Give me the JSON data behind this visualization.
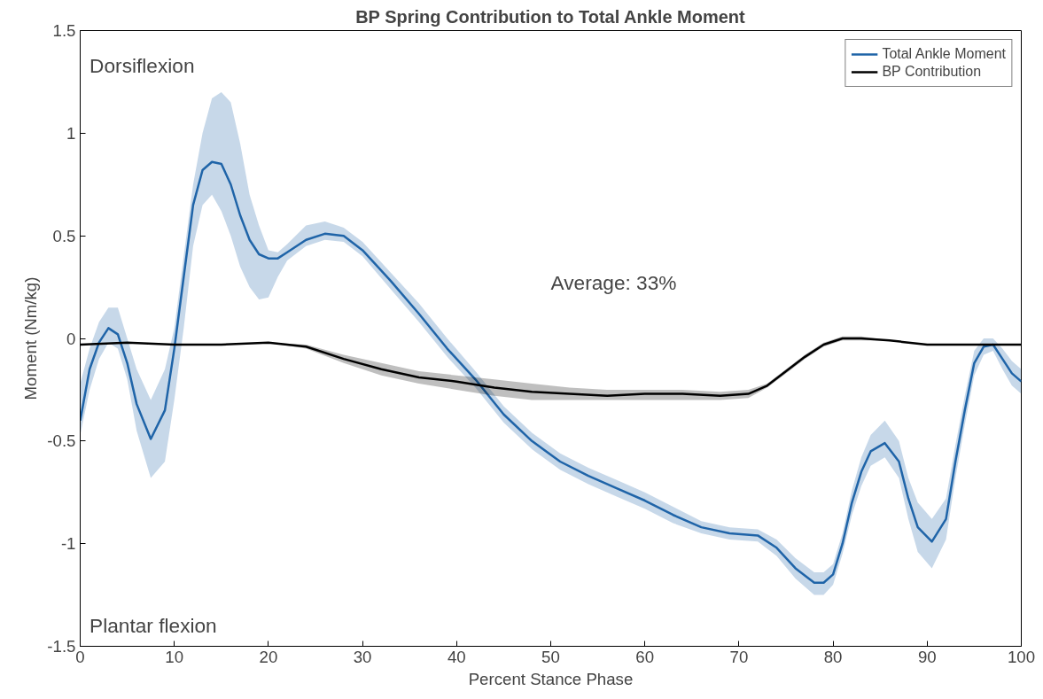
{
  "chart_data": {
    "type": "line",
    "title": "BP Spring Contribution to Total Ankle Moment",
    "xlabel": "Percent Stance Phase",
    "ylabel": "Moment (Nm/kg)",
    "xlim": [
      0,
      100
    ],
    "ylim": [
      -1.5,
      1.5
    ],
    "xticks": [
      0,
      10,
      20,
      30,
      40,
      50,
      60,
      70,
      80,
      90,
      100
    ],
    "yticks": [
      -1.5,
      -1,
      -0.5,
      0,
      0.5,
      1,
      1.5
    ],
    "grid": false,
    "legend": "top right",
    "marker": "none",
    "line_style": "solid",
    "annotations": [
      "Dorsiflexion",
      "Plantar flexion",
      "Average: 33%"
    ],
    "series": [
      {
        "name": "Total Ankle Moment",
        "color": "#1f64a8",
        "x": [
          0,
          1,
          2,
          3,
          4,
          5,
          6,
          7.5,
          9,
          10,
          11,
          12,
          13,
          14,
          15,
          16,
          17,
          18,
          19,
          20,
          21,
          22,
          24,
          26,
          28,
          30,
          33,
          36,
          39,
          42,
          45,
          48,
          51,
          54,
          57,
          60,
          63,
          66,
          69,
          72,
          74,
          76,
          78,
          79,
          80,
          81,
          82,
          83,
          84,
          85.5,
          87,
          88,
          89,
          90.5,
          92,
          93,
          94,
          95,
          96,
          97,
          98,
          99,
          100
        ],
        "values": [
          -0.4,
          -0.15,
          -0.02,
          0.05,
          0.02,
          -0.12,
          -0.32,
          -0.49,
          -0.35,
          -0.05,
          0.3,
          0.65,
          0.82,
          0.86,
          0.85,
          0.75,
          0.6,
          0.48,
          0.41,
          0.39,
          0.39,
          0.42,
          0.48,
          0.51,
          0.5,
          0.43,
          0.28,
          0.12,
          -0.05,
          -0.2,
          -0.37,
          -0.5,
          -0.6,
          -0.67,
          -0.73,
          -0.79,
          -0.86,
          -0.92,
          -0.95,
          -0.96,
          -1.02,
          -1.12,
          -1.19,
          -1.19,
          -1.15,
          -1.0,
          -0.8,
          -0.65,
          -0.55,
          -0.51,
          -0.6,
          -0.78,
          -0.92,
          -0.99,
          -0.88,
          -0.6,
          -0.35,
          -0.12,
          -0.04,
          -0.03,
          -0.1,
          -0.17,
          -0.21
        ],
        "lower": [
          -0.47,
          -0.25,
          -0.1,
          -0.02,
          -0.05,
          -0.2,
          -0.45,
          -0.68,
          -0.6,
          -0.3,
          0.05,
          0.45,
          0.65,
          0.7,
          0.62,
          0.5,
          0.35,
          0.25,
          0.19,
          0.2,
          0.3,
          0.38,
          0.45,
          0.48,
          0.47,
          0.4,
          0.24,
          0.08,
          -0.09,
          -0.24,
          -0.41,
          -0.54,
          -0.64,
          -0.71,
          -0.77,
          -0.83,
          -0.9,
          -0.95,
          -0.98,
          -0.99,
          -1.06,
          -1.17,
          -1.25,
          -1.25,
          -1.2,
          -1.05,
          -0.86,
          -0.72,
          -0.62,
          -0.58,
          -0.68,
          -0.88,
          -1.04,
          -1.12,
          -0.98,
          -0.68,
          -0.42,
          -0.18,
          -0.08,
          -0.06,
          -0.15,
          -0.23,
          -0.27
        ],
        "upper": [
          -0.22,
          -0.05,
          0.08,
          0.15,
          0.15,
          0.0,
          -0.15,
          -0.3,
          -0.15,
          0.05,
          0.4,
          0.75,
          1.0,
          1.17,
          1.2,
          1.15,
          0.95,
          0.7,
          0.55,
          0.43,
          0.42,
          0.46,
          0.55,
          0.57,
          0.54,
          0.47,
          0.32,
          0.17,
          0.0,
          -0.16,
          -0.33,
          -0.46,
          -0.56,
          -0.63,
          -0.69,
          -0.75,
          -0.82,
          -0.89,
          -0.92,
          -0.93,
          -0.98,
          -1.07,
          -1.14,
          -1.14,
          -1.1,
          -0.95,
          -0.74,
          -0.58,
          -0.47,
          -0.4,
          -0.5,
          -0.68,
          -0.8,
          -0.88,
          -0.78,
          -0.52,
          -0.28,
          -0.06,
          0.0,
          0.0,
          -0.05,
          -0.11,
          -0.15
        ]
      },
      {
        "name": "BP Contribution",
        "color": "#000000",
        "x": [
          0,
          5,
          10,
          15,
          20,
          24,
          28,
          32,
          36,
          40,
          44,
          48,
          52,
          56,
          60,
          64,
          68,
          71,
          73,
          75,
          77,
          79,
          81,
          83,
          86,
          90,
          100
        ],
        "values": [
          -0.03,
          -0.02,
          -0.03,
          -0.03,
          -0.02,
          -0.04,
          -0.1,
          -0.15,
          -0.19,
          -0.21,
          -0.24,
          -0.26,
          -0.27,
          -0.28,
          -0.27,
          -0.27,
          -0.28,
          -0.27,
          -0.23,
          -0.16,
          -0.09,
          -0.03,
          0.0,
          0.0,
          -0.01,
          -0.03,
          -0.03
        ],
        "lower": [
          -0.03,
          -0.02,
          -0.03,
          -0.03,
          -0.02,
          -0.05,
          -0.12,
          -0.18,
          -0.22,
          -0.25,
          -0.28,
          -0.3,
          -0.3,
          -0.3,
          -0.3,
          -0.3,
          -0.3,
          -0.29,
          -0.24,
          -0.17,
          -0.1,
          -0.04,
          -0.01,
          -0.01,
          -0.01,
          -0.03,
          -0.03
        ],
        "upper": [
          -0.03,
          -0.02,
          -0.03,
          -0.03,
          -0.02,
          -0.03,
          -0.08,
          -0.12,
          -0.16,
          -0.18,
          -0.2,
          -0.22,
          -0.24,
          -0.25,
          -0.25,
          -0.25,
          -0.26,
          -0.25,
          -0.22,
          -0.15,
          -0.08,
          -0.02,
          0.01,
          0.01,
          -0.01,
          -0.03,
          -0.03
        ]
      }
    ]
  }
}
